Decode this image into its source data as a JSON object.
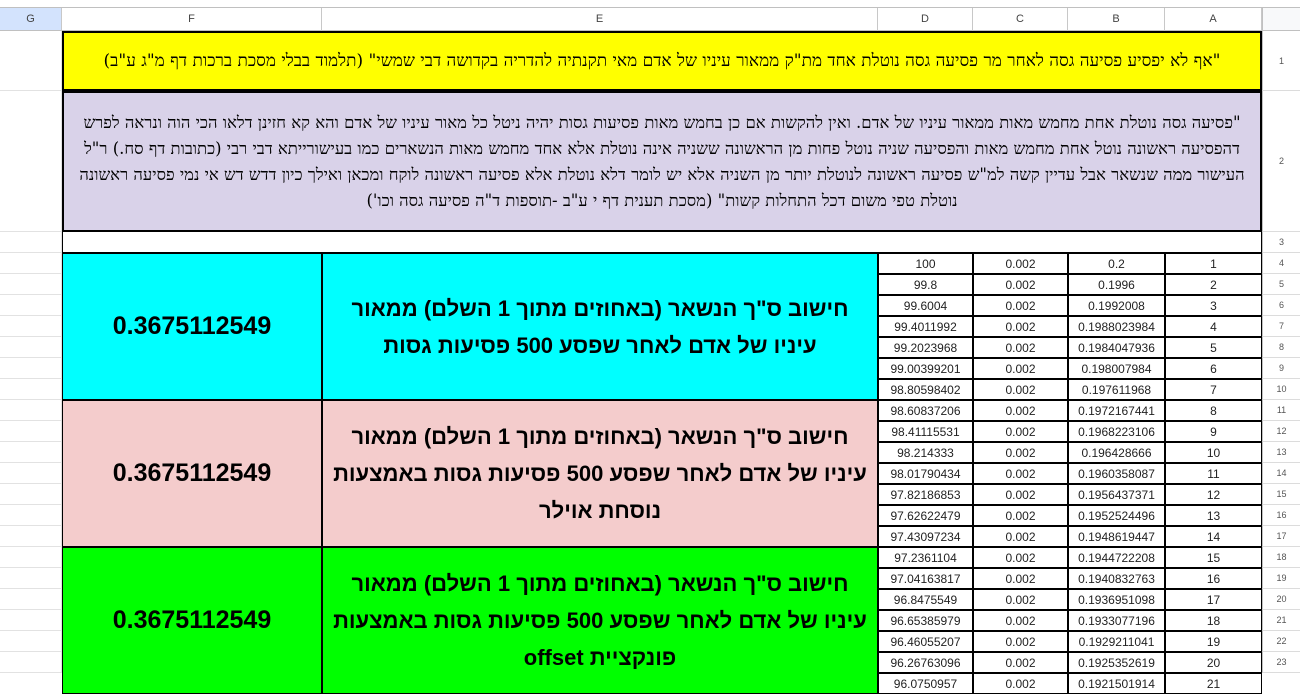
{
  "columns": [
    "G",
    "F",
    "E",
    "D",
    "C",
    "B",
    "A"
  ],
  "selected_column": "G",
  "row_numbers": [
    "1",
    "2",
    "3",
    "4",
    "5",
    "6",
    "7",
    "8",
    "9",
    "10",
    "11",
    "12",
    "13",
    "14",
    "15",
    "16",
    "17",
    "18",
    "19",
    "20",
    "21",
    "22",
    "23"
  ],
  "colors": {
    "row1": "#ffff00",
    "row2": "#d9d2e9",
    "block1": "#00ffff",
    "block2": "#f4cccc",
    "block3": "#00ff00"
  },
  "row1_text": "\"אף לא יפסיע פסיעה גסה לאחר מר פסיעה גסה נוטלת אחד מת\"ק ממאור עיניו של אדם מאי תקנתיה להדריה בקדושה דבי שמשי\" (תלמוד בבלי מסכת ברכות דף מ\"ג ע\"ב)",
  "row2_text": "\"פסיעה גסה נוטלת אחת מחמש מאות ממאור עיניו של אדם. ואין להקשות אם כן בחמש מאות פסיעות גסות יהיה ניטל כל מאור עיניו של אדם והא קא חזינן דלאו הכי הוה ונראה לפרש דהפסיעה ראשונה נוטל אחת מחמש מאות והפסיעה שניה נוטל פחות מן הראשונה ששניה אינה נוטלת אלא אחד מחמש מאות הנשארים כמו בעישורייתא דבי רבי (כתובות דף סח.) ר\"ל העישור ממה שנשאר אבל עדיין קשה למ\"ש פסיעה ראשונה לנוטלת יותר מן השניה אלא יש לומר דלא נוטלת אלא פסיעה ראשונה לוקח ומכאן ואילך כיון דדש דש אי נמי פסיעה ראשונה נוטלת טפי משום דכל התחלות קשות\" (מסכת תענית דף י ע\"ב -תוספות ד\"ה פסיעה גסה וכו')",
  "blocks": [
    {
      "result": "0.3675112549",
      "description": "חישוב ס\"ך הנשאר (באחוזים מתוך 1 השלם) ממאור עיניו של אדם לאחר שפסע 500 פסיעות גסות"
    },
    {
      "result": "0.3675112549",
      "description": "חישוב ס\"ך הנשאר (באחוזים מתוך 1 השלם) ממאור עיניו של אדם לאחר שפסע 500 פסיעות גסות באמצעות נוסחת אוילר"
    },
    {
      "result": "0.3675112549",
      "description": "חישוב ס\"ך הנשאר (באחוזים מתוך 1 השלם) ממאור עיניו של אדם לאחר שפסע 500 פסיעות גסות באמצעות פונקציית offset"
    }
  ],
  "table": [
    {
      "a": "1",
      "b": "0.2",
      "c": "0.002",
      "d": "100"
    },
    {
      "a": "2",
      "b": "0.1996",
      "c": "0.002",
      "d": "99.8"
    },
    {
      "a": "3",
      "b": "0.1992008",
      "c": "0.002",
      "d": "99.6004"
    },
    {
      "a": "4",
      "b": "0.1988023984",
      "c": "0.002",
      "d": "99.4011992"
    },
    {
      "a": "5",
      "b": "0.1984047936",
      "c": "0.002",
      "d": "99.2023968"
    },
    {
      "a": "6",
      "b": "0.198007984",
      "c": "0.002",
      "d": "99.00399201"
    },
    {
      "a": "7",
      "b": "0.197611968",
      "c": "0.002",
      "d": "98.80598402"
    },
    {
      "a": "8",
      "b": "0.1972167441",
      "c": "0.002",
      "d": "98.60837206"
    },
    {
      "a": "9",
      "b": "0.1968223106",
      "c": "0.002",
      "d": "98.41115531"
    },
    {
      "a": "10",
      "b": "0.196428666",
      "c": "0.002",
      "d": "98.214333"
    },
    {
      "a": "11",
      "b": "0.1960358087",
      "c": "0.002",
      "d": "98.01790434"
    },
    {
      "a": "12",
      "b": "0.1956437371",
      "c": "0.002",
      "d": "97.82186853"
    },
    {
      "a": "13",
      "b": "0.1952524496",
      "c": "0.002",
      "d": "97.62622479"
    },
    {
      "a": "14",
      "b": "0.1948619447",
      "c": "0.002",
      "d": "97.43097234"
    },
    {
      "a": "15",
      "b": "0.1944722208",
      "c": "0.002",
      "d": "97.2361104"
    },
    {
      "a": "16",
      "b": "0.1940832763",
      "c": "0.002",
      "d": "97.04163817"
    },
    {
      "a": "17",
      "b": "0.1936951098",
      "c": "0.002",
      "d": "96.8475549"
    },
    {
      "a": "18",
      "b": "0.1933077196",
      "c": "0.002",
      "d": "96.65385979"
    },
    {
      "a": "19",
      "b": "0.1929211041",
      "c": "0.002",
      "d": "96.46055207"
    },
    {
      "a": "20",
      "b": "0.1925352619",
      "c": "0.002",
      "d": "96.26763096"
    },
    {
      "a": "21",
      "b": "0.1921501914",
      "c": "0.002",
      "d": "96.0750957"
    }
  ]
}
